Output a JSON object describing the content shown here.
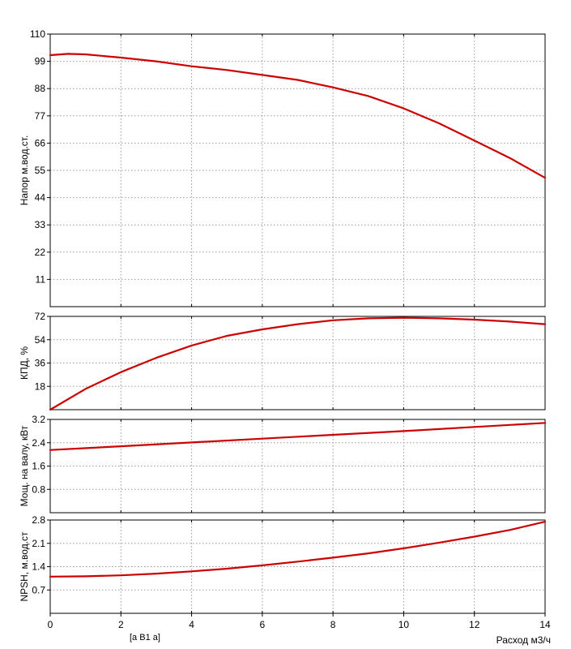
{
  "chart_data": [
    {
      "type": "line",
      "ylabel": "Напор м.вод.ст.",
      "ylim": [
        0,
        110
      ],
      "yticks": [
        "11",
        "22",
        "33",
        "44",
        "55",
        "66",
        "77",
        "88",
        "99",
        "110"
      ],
      "xlim": [
        0,
        14
      ],
      "grid": true,
      "series": [
        {
          "color": "#cc0000",
          "x": [
            0,
            0.5,
            1,
            2,
            3,
            4,
            5,
            6,
            7,
            8,
            9,
            10,
            11,
            12,
            13,
            14
          ],
          "y": [
            101.5,
            102,
            101.8,
            100.5,
            99,
            97,
            95.5,
            93.5,
            91.5,
            88.5,
            85,
            80,
            74,
            67,
            60,
            52
          ]
        }
      ]
    },
    {
      "type": "line",
      "ylabel": "КПД, %",
      "ylim": [
        0,
        72
      ],
      "yticks": [
        "18",
        "36",
        "54",
        "72"
      ],
      "xlim": [
        0,
        14
      ],
      "grid": true,
      "series": [
        {
          "color": "#cc0000",
          "x": [
            0,
            1,
            2,
            3,
            4,
            5,
            6,
            7,
            8,
            9,
            10,
            11,
            12,
            13,
            14
          ],
          "y": [
            0,
            16,
            29,
            40,
            49.5,
            57,
            62,
            66,
            69,
            70.5,
            71,
            70.5,
            69.5,
            68,
            66
          ]
        }
      ]
    },
    {
      "type": "line",
      "ylabel": "Мощ. на валу, кВт",
      "ylim": [
        0,
        3.2
      ],
      "yticks": [
        "0.8",
        "1.6",
        "2.4",
        "3.2"
      ],
      "xlim": [
        0,
        14
      ],
      "grid": true,
      "series": [
        {
          "color": "#cc0000",
          "x": [
            0,
            2,
            4,
            6,
            8,
            10,
            12,
            14
          ],
          "y": [
            2.15,
            2.28,
            2.41,
            2.54,
            2.67,
            2.8,
            2.94,
            3.08
          ]
        }
      ]
    },
    {
      "type": "line",
      "ylabel": "NPSH, м.вод.ст",
      "ylim": [
        0,
        2.8
      ],
      "yticks": [
        "0.7",
        "1.4",
        "2.1",
        "2.8"
      ],
      "xlim": [
        0,
        14
      ],
      "xticks": [
        "0",
        "2",
        "4",
        "6",
        "8",
        "10",
        "12",
        "14"
      ],
      "xlabel": "Расход м3/ч",
      "grid": true,
      "series": [
        {
          "color": "#cc0000",
          "x": [
            0,
            1,
            2,
            3,
            4,
            5,
            6,
            7,
            8,
            9,
            10,
            11,
            12,
            13,
            14
          ],
          "y": [
            1.1,
            1.11,
            1.14,
            1.19,
            1.26,
            1.34,
            1.44,
            1.55,
            1.67,
            1.8,
            1.95,
            2.12,
            2.3,
            2.5,
            2.75
          ]
        }
      ]
    }
  ],
  "footer_text": "[a B1 a]"
}
